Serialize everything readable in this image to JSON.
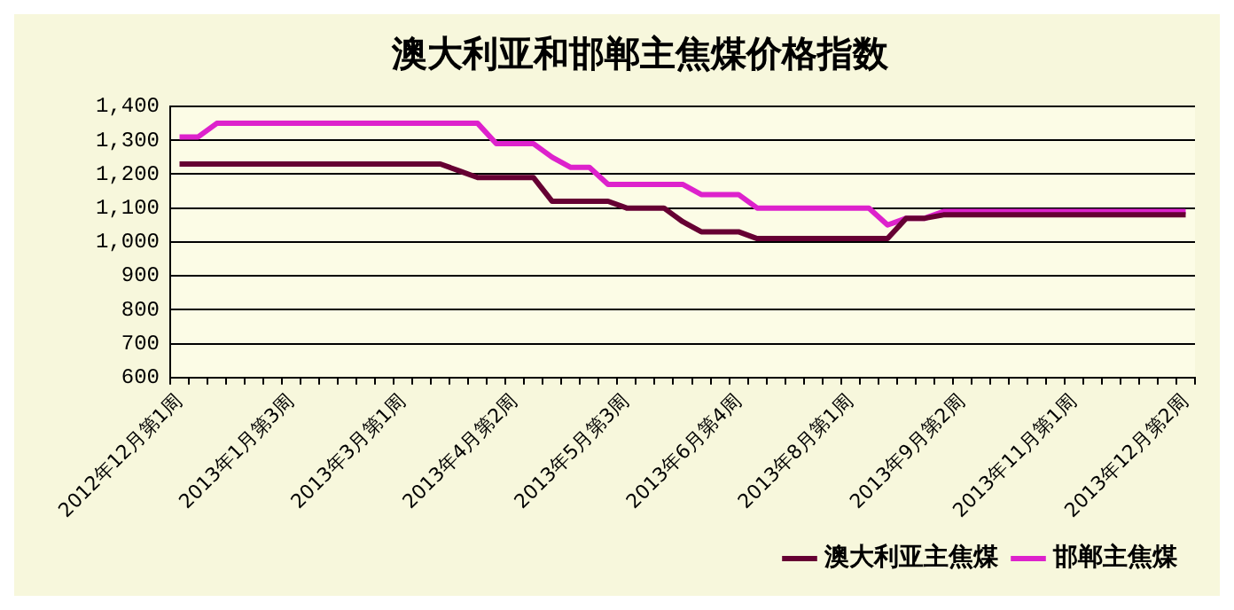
{
  "chart_data": {
    "type": "line",
    "title": "澳大利亚和邯郸主焦煤价格指数",
    "categories": [
      "2012年12月第1周",
      null,
      null,
      null,
      null,
      null,
      "2013年1月第3周",
      null,
      null,
      null,
      null,
      null,
      "2013年3月第1周",
      null,
      null,
      null,
      null,
      null,
      "2013年4月第2周",
      null,
      null,
      null,
      null,
      null,
      "2013年5月第3周",
      null,
      null,
      null,
      null,
      null,
      "2013年6月第4周",
      null,
      null,
      null,
      null,
      null,
      "2013年8月第1周",
      null,
      null,
      null,
      null,
      null,
      "2013年9月第2周",
      null,
      null,
      null,
      null,
      null,
      "2013年11月第1周",
      null,
      null,
      null,
      null,
      null,
      "2013年12月第2周"
    ],
    "series": [
      {
        "name": "澳大利亚主焦煤",
        "color": "#660033",
        "values": [
          1230,
          1230,
          1230,
          1230,
          1230,
          1230,
          1230,
          1230,
          1230,
          1230,
          1230,
          1230,
          1230,
          1230,
          1230,
          1210,
          1190,
          1190,
          1190,
          1190,
          1120,
          1120,
          1120,
          1120,
          1100,
          1100,
          1100,
          1060,
          1030,
          1030,
          1030,
          1010,
          1010,
          1010,
          1010,
          1010,
          1010,
          1010,
          1010,
          1070,
          1070,
          1080,
          1080,
          1080,
          1080,
          1080,
          1080,
          1080,
          1080,
          1080,
          1080,
          1080,
          1080,
          1080,
          1080
        ]
      },
      {
        "name": "邯郸主焦煤",
        "color": "#dd22cc",
        "values": [
          1310,
          1310,
          1350,
          1350,
          1350,
          1350,
          1350,
          1350,
          1350,
          1350,
          1350,
          1350,
          1350,
          1350,
          1350,
          1350,
          1350,
          1290,
          1290,
          1290,
          1250,
          1220,
          1220,
          1170,
          1170,
          1170,
          1170,
          1170,
          1140,
          1140,
          1140,
          1100,
          1100,
          1100,
          1100,
          1100,
          1100,
          1100,
          1050,
          1070,
          1070,
          1090,
          1090,
          1090,
          1090,
          1090,
          1090,
          1090,
          1090,
          1090,
          1090,
          1090,
          1090,
          1090,
          1090
        ]
      }
    ],
    "ylim": [
      600,
      1400
    ],
    "yticks": [
      600,
      700,
      800,
      900,
      {
        "value": 1000,
        "label": "1,000"
      },
      {
        "value": 1100,
        "label": "1,100"
      },
      {
        "value": 1200,
        "label": "1,200"
      },
      {
        "value": 1300,
        "label": "1,300"
      },
      {
        "value": 1400,
        "label": "1,400"
      }
    ],
    "grid": "y",
    "legend": "bottom right",
    "marker": "none",
    "line_style": "solid"
  }
}
